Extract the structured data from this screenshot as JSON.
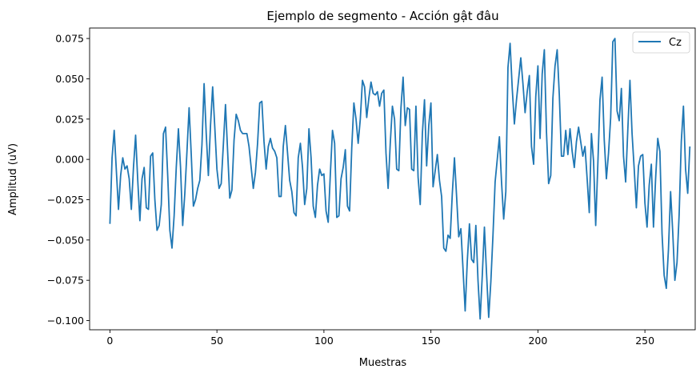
{
  "chart_data": {
    "type": "line",
    "title": "Ejemplo de segmento - Acción gật  đâu",
    "xlabel": "Muestras",
    "ylabel": "Amplitud (uV)",
    "xlim": [
      -9.5,
      273.5
    ],
    "ylim": [
      -0.1057,
      0.0815
    ],
    "xticks": [
      0,
      50,
      100,
      150,
      200,
      250
    ],
    "xtick_labels": [
      "0",
      "50",
      "100",
      "150",
      "200",
      "250"
    ],
    "yticks": [
      -0.1,
      -0.075,
      -0.05,
      -0.025,
      0.0,
      0.025,
      0.05,
      0.075
    ],
    "ytick_labels": [
      "−0.100",
      "−0.075",
      "−0.050",
      "−0.025",
      "0.000",
      "0.025",
      "0.050",
      "0.075"
    ],
    "grid": false,
    "legend_position": "top-right",
    "series": [
      {
        "name": "Cz",
        "color": "#1f77b4",
        "y": [
          -0.04,
          0.001,
          0.018,
          -0.007,
          -0.031,
          -0.01,
          0.001,
          -0.006,
          -0.004,
          -0.012,
          -0.031,
          -0.005,
          0.015,
          -0.013,
          -0.038,
          -0.012,
          -0.005,
          -0.03,
          -0.031,
          0.002,
          0.004,
          -0.025,
          -0.044,
          -0.041,
          -0.028,
          0.016,
          0.02,
          -0.01,
          -0.044,
          -0.055,
          -0.035,
          -0.005,
          0.019,
          -0.005,
          -0.041,
          -0.021,
          0.005,
          0.032,
          0.003,
          -0.029,
          -0.025,
          -0.018,
          -0.013,
          0.009,
          0.047,
          0.016,
          -0.01,
          0.021,
          0.045,
          0.02,
          -0.006,
          -0.018,
          -0.015,
          0.009,
          0.034,
          0.005,
          -0.024,
          -0.019,
          0.012,
          0.028,
          0.024,
          0.018,
          0.016,
          0.016,
          0.016,
          0.008,
          -0.005,
          -0.018,
          -0.008,
          0.01,
          0.035,
          0.036,
          0.011,
          -0.006,
          0.008,
          0.013,
          0.007,
          0.005,
          0.001,
          -0.023,
          -0.023,
          0.008,
          0.021,
          0.004,
          -0.013,
          -0.02,
          -0.033,
          -0.035,
          0.001,
          0.01,
          -0.005,
          -0.028,
          -0.018,
          0.019,
          0.001,
          -0.029,
          -0.036,
          -0.016,
          -0.006,
          -0.01,
          -0.009,
          -0.032,
          -0.039,
          -0.009,
          0.018,
          0.01,
          -0.036,
          -0.035,
          -0.012,
          -0.005,
          0.006,
          -0.029,
          -0.032,
          0.007,
          0.035,
          0.025,
          0.01,
          0.025,
          0.049,
          0.045,
          0.026,
          0.038,
          0.048,
          0.041,
          0.04,
          0.042,
          0.033,
          0.041,
          0.043,
          0.004,
          -0.018,
          0.01,
          0.033,
          0.025,
          -0.006,
          -0.007,
          0.032,
          0.051,
          0.021,
          0.032,
          0.031,
          -0.006,
          -0.007,
          0.033,
          -0.011,
          -0.028,
          0.016,
          0.037,
          -0.004,
          0.021,
          0.035,
          -0.017,
          -0.007,
          0.003,
          -0.013,
          -0.023,
          -0.055,
          -0.057,
          -0.047,
          -0.049,
          -0.021,
          0.001,
          -0.023,
          -0.048,
          -0.043,
          -0.068,
          -0.094,
          -0.063,
          -0.04,
          -0.062,
          -0.064,
          -0.041,
          -0.075,
          -0.099,
          -0.072,
          -0.042,
          -0.071,
          -0.098,
          -0.076,
          -0.047,
          -0.014,
          0.0,
          0.014,
          -0.014,
          -0.037,
          -0.02,
          0.057,
          0.072,
          0.044,
          0.022,
          0.037,
          0.05,
          0.063,
          0.047,
          0.029,
          0.042,
          0.052,
          0.008,
          -0.003,
          0.039,
          0.058,
          0.013,
          0.053,
          0.068,
          0.017,
          -0.015,
          -0.01,
          0.038,
          0.058,
          0.068,
          0.04,
          0.002,
          0.002,
          0.018,
          0.003,
          0.019,
          0.005,
          -0.005,
          0.011,
          0.02,
          0.011,
          0.002,
          0.008,
          -0.012,
          -0.033,
          0.016,
          -0.001,
          -0.041,
          -0.003,
          0.037,
          0.051,
          0.012,
          -0.012,
          0.004,
          0.026,
          0.073,
          0.075,
          0.03,
          0.024,
          0.044,
          0.002,
          -0.014,
          0.018,
          0.049,
          0.016,
          -0.006,
          -0.03,
          -0.004,
          0.002,
          0.003,
          -0.027,
          -0.042,
          -0.016,
          -0.003,
          -0.042,
          -0.012,
          0.013,
          0.005,
          -0.046,
          -0.072,
          -0.08,
          -0.056,
          -0.02,
          -0.045,
          -0.075,
          -0.064,
          -0.034,
          0.011,
          0.033,
          -0.006,
          -0.021,
          0.008
        ]
      }
    ]
  }
}
